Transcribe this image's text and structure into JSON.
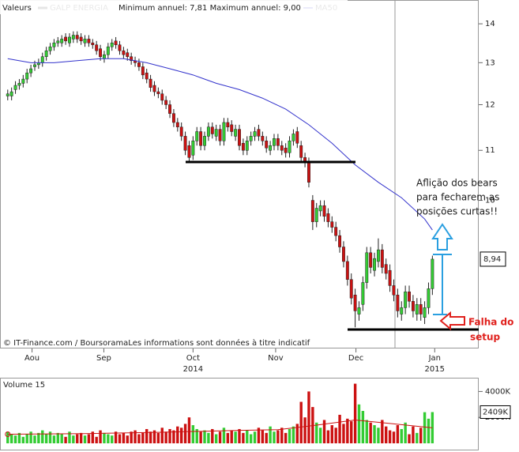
{
  "chart_data": [
    {
      "type": "candlestick",
      "title": "Valeurs",
      "subtitle": "Minimum annuel: 7,81 Maximum annuel: 9,00",
      "footer": "© IT-Finance.com / BoursoramaLes informations sont données à titre indicatif",
      "log_scale": true,
      "up_color": "#33cc33",
      "down_color": "#cc1111",
      "ylim": [
        7.54,
        14.65
      ],
      "yticks": [
        10,
        11,
        12,
        13,
        14
      ],
      "xlim": [
        -2,
        122
      ],
      "xticks": [
        {
          "value": 6.3,
          "label": "Aou"
        },
        {
          "value": 24.9,
          "label": "Sep"
        },
        {
          "value": 48,
          "label": "Oct"
        },
        {
          "value": 69.4,
          "label": "Nov"
        },
        {
          "value": 90.2,
          "label": "Dec"
        },
        {
          "value": 110.6,
          "label": "Jan"
        }
      ],
      "year_labels": [
        {
          "value": 48,
          "label": "2014"
        },
        {
          "value": 110.6,
          "label": "2015"
        }
      ],
      "last_label": {
        "value": 8.94,
        "label": "8,94"
      },
      "annotations": [
        "Aflição dos bears",
        "para fecharem as",
        "posições curtas!!",
        "Falha do",
        "setup"
      ],
      "series": [
        {
          "name": "GALP ENERGIA",
          "color": "#000000",
          "open": [
            12.2,
            12.2,
            12.35,
            12.45,
            12.5,
            12.6,
            12.75,
            12.9,
            12.95,
            13.0,
            13.15,
            13.3,
            13.4,
            13.5,
            13.5,
            13.65,
            13.5,
            13.6,
            13.7,
            13.65,
            13.5,
            13.6,
            13.5,
            13.45,
            13.35,
            13.1,
            13.2,
            13.4,
            13.55,
            13.45,
            13.3,
            13.25,
            13.15,
            13.05,
            13.0,
            12.9,
            12.75,
            12.6,
            12.45,
            12.3,
            12.25,
            12.1,
            12.0,
            11.8,
            11.6,
            11.5,
            11.3,
            11.1,
            10.9,
            11.2,
            11.4,
            11.1,
            11.3,
            11.5,
            11.3,
            11.45,
            11.2,
            11.6,
            11.55,
            11.3,
            11.45,
            11.15,
            11.0,
            11.2,
            11.3,
            11.45,
            11.3,
            11.2,
            11.0,
            11.1,
            11.25,
            11.1,
            11.05,
            10.95,
            11.2,
            11.4,
            11.1,
            10.85,
            10.75,
            10.0,
            9.6,
            9.8,
            9.9,
            9.75,
            9.6,
            9.5,
            9.35,
            9.15,
            8.9,
            8.6,
            8.35,
            8.05,
            8.2,
            8.55,
            9.05,
            8.75,
            8.9,
            9.1,
            8.85,
            8.75,
            8.5,
            8.35,
            8.05,
            8.15,
            8.4,
            8.25,
            8.05,
            8.2,
            8.0,
            8.15,
            8.45
          ],
          "high": [
            12.35,
            12.4,
            12.55,
            12.6,
            12.7,
            12.85,
            12.95,
            13.05,
            13.1,
            13.25,
            13.4,
            13.5,
            13.6,
            13.65,
            13.7,
            13.75,
            13.75,
            13.8,
            13.8,
            13.75,
            13.7,
            13.7,
            13.6,
            13.55,
            13.45,
            13.3,
            13.5,
            13.6,
            13.65,
            13.55,
            13.4,
            13.35,
            13.25,
            13.15,
            13.1,
            13.0,
            12.85,
            12.7,
            12.55,
            12.4,
            12.35,
            12.2,
            12.1,
            11.9,
            11.7,
            11.6,
            11.4,
            11.2,
            11.3,
            11.5,
            11.5,
            11.4,
            11.6,
            11.6,
            11.55,
            11.55,
            11.7,
            11.7,
            11.65,
            11.55,
            11.55,
            11.25,
            11.3,
            11.4,
            11.5,
            11.55,
            11.4,
            11.3,
            11.2,
            11.35,
            11.35,
            11.2,
            11.15,
            11.3,
            11.45,
            11.5,
            11.2,
            10.95,
            10.85,
            10.1,
            9.95,
            10.0,
            10.0,
            9.85,
            9.7,
            9.6,
            9.45,
            9.25,
            9.0,
            8.7,
            8.45,
            8.25,
            8.65,
            9.15,
            9.15,
            9.05,
            9.3,
            9.2,
            8.95,
            8.85,
            8.6,
            8.45,
            8.25,
            8.5,
            8.5,
            8.35,
            8.3,
            8.3,
            8.25,
            8.55,
            9.0
          ],
          "low": [
            12.1,
            12.1,
            12.25,
            12.35,
            12.4,
            12.5,
            12.65,
            12.8,
            12.85,
            12.9,
            13.05,
            13.2,
            13.3,
            13.4,
            13.4,
            13.45,
            13.4,
            13.5,
            13.5,
            13.45,
            13.4,
            13.4,
            13.35,
            13.2,
            13.05,
            13.0,
            13.1,
            13.3,
            13.35,
            13.2,
            13.1,
            13.05,
            12.95,
            12.9,
            12.8,
            12.6,
            12.5,
            12.3,
            12.2,
            12.15,
            12.0,
            11.9,
            11.7,
            11.5,
            11.4,
            11.2,
            10.9,
            10.75,
            10.8,
            11.1,
            11.0,
            11.0,
            11.2,
            11.25,
            11.2,
            11.1,
            11.1,
            11.4,
            11.3,
            11.2,
            11.0,
            10.9,
            10.9,
            11.1,
            11.2,
            11.2,
            11.1,
            10.95,
            10.9,
            11.0,
            11.0,
            10.9,
            10.85,
            10.85,
            11.1,
            11.05,
            10.75,
            10.65,
            10.25,
            9.45,
            9.5,
            9.7,
            9.6,
            9.5,
            9.4,
            9.25,
            9.05,
            8.8,
            8.5,
            8.2,
            7.85,
            7.95,
            8.1,
            8.45,
            8.7,
            8.65,
            8.8,
            8.7,
            8.6,
            8.4,
            8.25,
            8.0,
            7.95,
            8.05,
            8.15,
            8.0,
            7.95,
            7.95,
            7.9,
            8.05,
            8.35
          ],
          "close": [
            12.25,
            12.3,
            12.45,
            12.5,
            12.6,
            12.75,
            12.85,
            12.95,
            13.0,
            13.15,
            13.3,
            13.4,
            13.5,
            13.55,
            13.6,
            13.55,
            13.65,
            13.7,
            13.6,
            13.55,
            13.6,
            13.5,
            13.45,
            13.3,
            13.15,
            13.2,
            13.4,
            13.5,
            13.45,
            13.3,
            13.2,
            13.15,
            13.05,
            13.0,
            12.9,
            12.7,
            12.6,
            12.4,
            12.3,
            12.25,
            12.1,
            12.0,
            11.8,
            11.6,
            11.5,
            11.3,
            11.0,
            10.85,
            11.2,
            11.4,
            11.1,
            11.3,
            11.5,
            11.35,
            11.45,
            11.2,
            11.6,
            11.5,
            11.4,
            11.45,
            11.1,
            11.0,
            11.2,
            11.3,
            11.4,
            11.3,
            11.2,
            11.05,
            11.1,
            11.25,
            11.1,
            11.0,
            10.95,
            11.2,
            11.35,
            11.15,
            10.85,
            10.75,
            10.35,
            9.6,
            9.85,
            9.9,
            9.7,
            9.6,
            9.5,
            9.35,
            9.15,
            8.9,
            8.6,
            8.3,
            8.1,
            8.15,
            8.55,
            9.05,
            8.8,
            8.95,
            9.1,
            8.8,
            8.7,
            8.5,
            8.35,
            8.1,
            8.15,
            8.4,
            8.25,
            8.1,
            8.2,
            8.05,
            8.15,
            8.45,
            8.94
          ]
        },
        {
          "name": "MA50",
          "color": "#3333cc",
          "x": [
            0,
            6,
            12,
            18,
            24,
            30,
            36,
            42,
            48,
            54,
            60,
            66,
            72,
            78,
            84,
            90,
            96,
            102,
            108,
            110
          ],
          "values": [
            13.1,
            13.0,
            13.0,
            13.05,
            13.1,
            13.1,
            13.0,
            12.85,
            12.7,
            12.5,
            12.35,
            12.15,
            11.9,
            11.55,
            11.15,
            10.7,
            10.35,
            10.05,
            9.65,
            9.45
          ]
        }
      ]
    },
    {
      "type": "bar",
      "title": "Volume 15",
      "ylim": [
        0,
        5000
      ],
      "yticks": [
        {
          "value": 2000,
          "label": "2000K"
        },
        {
          "value": 4000,
          "label": "4000K"
        }
      ],
      "last_label": {
        "value": 2409,
        "label": "2409K"
      },
      "values": [
        900,
        700,
        600,
        800,
        500,
        700,
        900,
        600,
        800,
        1000,
        700,
        900,
        600,
        800,
        700,
        500,
        900,
        600,
        700,
        800,
        600,
        700,
        900,
        500,
        1000,
        800,
        700,
        600,
        900,
        700,
        800,
        600,
        900,
        1000,
        700,
        800,
        1100,
        900,
        1000,
        800,
        1200,
        900,
        1100,
        1000,
        1300,
        1200,
        1500,
        2000,
        1400,
        1100,
        900,
        1000,
        800,
        1100,
        700,
        900,
        1200,
        800,
        1000,
        900,
        1100,
        800,
        1000,
        700,
        900,
        1200,
        1000,
        800,
        1300,
        900,
        1000,
        1200,
        800,
        1100,
        1300,
        1500,
        3200,
        2000,
        4000,
        2800,
        1600,
        1200,
        1800,
        1000,
        1400,
        1200,
        2200,
        1500,
        1900,
        1700,
        4600,
        3000,
        2500,
        1800,
        1600,
        1400,
        1200,
        1800,
        1300,
        1000,
        900,
        1400,
        1100,
        1600,
        700,
        1300,
        800,
        1200,
        2400,
        1900,
        2409
      ],
      "average": {
        "color": "#cc1111",
        "x": [
          0,
          20,
          40,
          60,
          70,
          80,
          90,
          100,
          110
        ],
        "values": [
          700,
          750,
          850,
          1000,
          1050,
          1400,
          1800,
          1500,
          1200
        ]
      }
    }
  ]
}
